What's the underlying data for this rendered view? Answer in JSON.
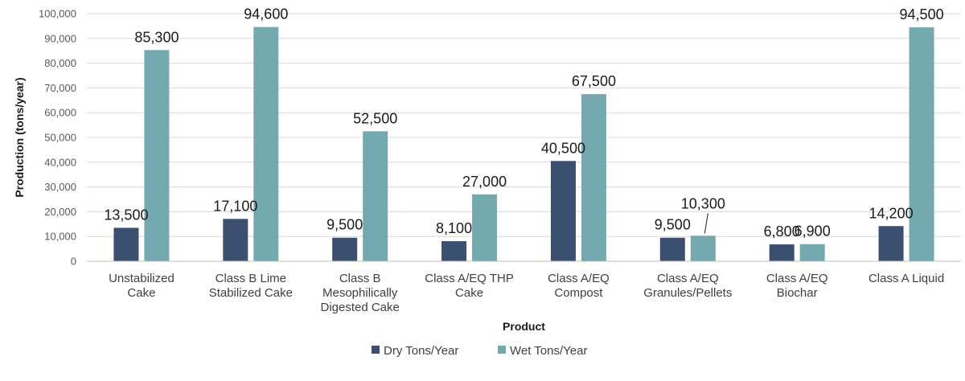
{
  "chart_data": {
    "type": "bar",
    "title": "",
    "xlabel": "Product",
    "ylabel": "Production (tons/year)",
    "ylim": [
      0,
      100000
    ],
    "yticks": [
      "0",
      "10,000",
      "20,000",
      "30,000",
      "40,000",
      "50,000",
      "60,000",
      "70,000",
      "80,000",
      "90,000",
      "100,000"
    ],
    "grid": true,
    "legend_position": "bottom",
    "categories": [
      [
        "Unstabilized",
        "Cake"
      ],
      [
        "Class B Lime",
        "Stabilized Cake"
      ],
      [
        "Class B",
        "Mesophilically",
        "Digested Cake"
      ],
      [
        "Class A/EQ THP",
        "Cake"
      ],
      [
        "Class A/EQ",
        "Compost"
      ],
      [
        "Class A/EQ",
        "Granules/Pellets"
      ],
      [
        "Class A/EQ",
        "Biochar"
      ],
      [
        "Class A Liquid"
      ]
    ],
    "series": [
      {
        "name": "Dry Tons/Year",
        "color": "#3b5070",
        "values": [
          13500,
          17100,
          9500,
          8100,
          40500,
          9500,
          6800,
          14200
        ],
        "labels": [
          "13,500",
          "17,100",
          "9,500",
          "8,100",
          "40,500",
          "9,500",
          "6,800",
          "14,200"
        ]
      },
      {
        "name": "Wet Tons/Year",
        "color": "#74a9b0",
        "values": [
          85300,
          94600,
          52500,
          27000,
          67500,
          10300,
          6900,
          94500
        ],
        "labels": [
          "85,300",
          "94,600",
          "52,500",
          "27,000",
          "67,500",
          "10,300",
          "6,900",
          "94,500"
        ]
      }
    ]
  }
}
